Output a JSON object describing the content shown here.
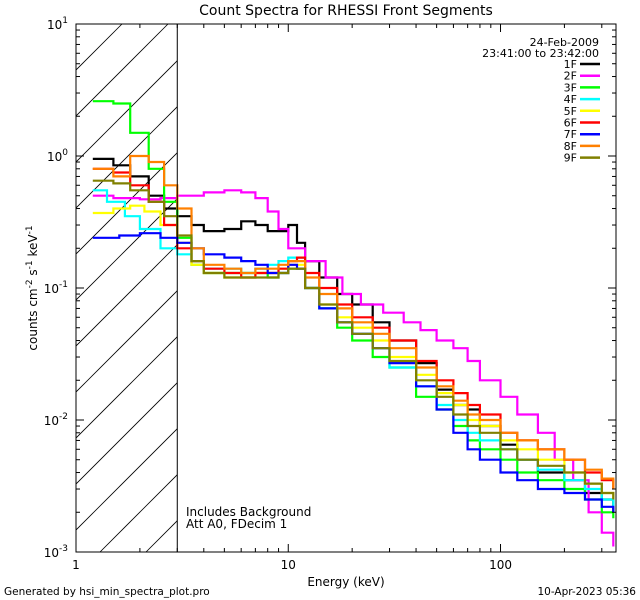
{
  "chart_data": {
    "type": "line",
    "title": "Count Spectra for RHESSI Front Segments",
    "xlabel": "Energy (keV)",
    "ylabel_parts": [
      "counts cm",
      "-2",
      " s",
      "-1",
      " keV",
      "-1"
    ],
    "x_scale": "log",
    "y_scale": "log",
    "xlim": [
      1,
      350
    ],
    "ylim": [
      0.001,
      10
    ],
    "x_ticks": [
      {
        "value": 1,
        "label": "1"
      },
      {
        "value": 10,
        "label": "10"
      },
      {
        "value": 100,
        "label": "100"
      }
    ],
    "y_ticks": [
      {
        "value": 0.001,
        "base": "10",
        "exp": "-3"
      },
      {
        "value": 0.01,
        "base": "10",
        "exp": "-2"
      },
      {
        "value": 0.1,
        "base": "10",
        "exp": "-1"
      },
      {
        "value": 1,
        "base": "10",
        "exp": "0"
      },
      {
        "value": 10,
        "base": "10",
        "exp": "1"
      }
    ],
    "hatched_region_kev": [
      1,
      3
    ],
    "date": "24-Feb-2009",
    "time_range": "23:41:00 to 23:42:00",
    "annotations": [
      "Includes Background",
      "Att A0, FDecim 1"
    ],
    "legend_position": "top-right",
    "series": [
      {
        "name": "1F",
        "color": "#000000",
        "points": [
          [
            1.2,
            0.95
          ],
          [
            1.5,
            0.85
          ],
          [
            1.8,
            0.7
          ],
          [
            2.2,
            0.5
          ],
          [
            2.6,
            0.4
          ],
          [
            3.0,
            0.35
          ],
          [
            3.5,
            0.3
          ],
          [
            4.0,
            0.27
          ],
          [
            5.0,
            0.28
          ],
          [
            6.0,
            0.32
          ],
          [
            7.0,
            0.3
          ],
          [
            8.0,
            0.27
          ],
          [
            9.0,
            0.27
          ],
          [
            10.0,
            0.3
          ],
          [
            11.0,
            0.22
          ],
          [
            12.0,
            0.16
          ],
          [
            14.0,
            0.12
          ],
          [
            17.0,
            0.09
          ],
          [
            20.0,
            0.075
          ],
          [
            25.0,
            0.055
          ],
          [
            30.0,
            0.04
          ],
          [
            40.0,
            0.027
          ],
          [
            50.0,
            0.017
          ],
          [
            60.0,
            0.013
          ],
          [
            70.0,
            0.012
          ],
          [
            80.0,
            0.009
          ],
          [
            100.0,
            0.0065
          ],
          [
            120.0,
            0.005
          ],
          [
            150.0,
            0.004
          ],
          [
            200.0,
            0.0035
          ],
          [
            250.0,
            0.0028
          ],
          [
            300.0,
            0.0025
          ],
          [
            340.0,
            0.002
          ]
        ]
      },
      {
        "name": "2F",
        "color": "#ff00ff",
        "points": [
          [
            1.2,
            0.5
          ],
          [
            1.5,
            0.48
          ],
          [
            2.0,
            0.47
          ],
          [
            2.5,
            0.48
          ],
          [
            3.0,
            0.5
          ],
          [
            4.0,
            0.53
          ],
          [
            5.0,
            0.55
          ],
          [
            6.0,
            0.53
          ],
          [
            7.0,
            0.48
          ],
          [
            8.0,
            0.38
          ],
          [
            9.0,
            0.28
          ],
          [
            10.0,
            0.2
          ],
          [
            12.0,
            0.16
          ],
          [
            15.0,
            0.12
          ],
          [
            18.0,
            0.09
          ],
          [
            22.0,
            0.075
          ],
          [
            28.0,
            0.065
          ],
          [
            35.0,
            0.055
          ],
          [
            42.0,
            0.048
          ],
          [
            50.0,
            0.04
          ],
          [
            60.0,
            0.035
          ],
          [
            70.0,
            0.028
          ],
          [
            80.0,
            0.02
          ],
          [
            100.0,
            0.015
          ],
          [
            120.0,
            0.011
          ],
          [
            150.0,
            0.008
          ],
          [
            180.0,
            0.005
          ],
          [
            220.0,
            0.0035
          ],
          [
            260.0,
            0.002
          ],
          [
            300.0,
            0.0014
          ],
          [
            340.0,
            0.0011
          ]
        ]
      },
      {
        "name": "3F",
        "color": "#00ff00",
        "points": [
          [
            1.2,
            2.6
          ],
          [
            1.5,
            2.5
          ],
          [
            1.8,
            1.5
          ],
          [
            2.2,
            0.8
          ],
          [
            2.6,
            0.45
          ],
          [
            3.0,
            0.24
          ],
          [
            3.5,
            0.15
          ],
          [
            4.0,
            0.13
          ],
          [
            5.0,
            0.13
          ],
          [
            6.0,
            0.13
          ],
          [
            7.0,
            0.13
          ],
          [
            8.0,
            0.12
          ],
          [
            9.0,
            0.13
          ],
          [
            10.0,
            0.14
          ],
          [
            12.0,
            0.1
          ],
          [
            14.0,
            0.07
          ],
          [
            17.0,
            0.05
          ],
          [
            20.0,
            0.04
          ],
          [
            25.0,
            0.03
          ],
          [
            30.0,
            0.025
          ],
          [
            40.0,
            0.015
          ],
          [
            50.0,
            0.012
          ],
          [
            60.0,
            0.009
          ],
          [
            70.0,
            0.007
          ],
          [
            80.0,
            0.006
          ],
          [
            100.0,
            0.005
          ],
          [
            120.0,
            0.004
          ],
          [
            150.0,
            0.0035
          ],
          [
            200.0,
            0.003
          ],
          [
            250.0,
            0.0025
          ],
          [
            300.0,
            0.002
          ],
          [
            340.0,
            0.0018
          ]
        ]
      },
      {
        "name": "4F",
        "color": "#00ffff",
        "points": [
          [
            1.2,
            0.55
          ],
          [
            1.4,
            0.45
          ],
          [
            1.7,
            0.35
          ],
          [
            2.0,
            0.28
          ],
          [
            2.5,
            0.2
          ],
          [
            3.0,
            0.18
          ],
          [
            3.5,
            0.16
          ],
          [
            4.0,
            0.14
          ],
          [
            5.0,
            0.14
          ],
          [
            6.0,
            0.13
          ],
          [
            7.0,
            0.14
          ],
          [
            8.0,
            0.15
          ],
          [
            9.0,
            0.16
          ],
          [
            10.0,
            0.17
          ],
          [
            12.0,
            0.1
          ],
          [
            14.0,
            0.07
          ],
          [
            17.0,
            0.055
          ],
          [
            20.0,
            0.045
          ],
          [
            25.0,
            0.035
          ],
          [
            30.0,
            0.025
          ],
          [
            40.0,
            0.018
          ],
          [
            50.0,
            0.013
          ],
          [
            60.0,
            0.01
          ],
          [
            70.0,
            0.008
          ],
          [
            80.0,
            0.007
          ],
          [
            100.0,
            0.006
          ],
          [
            120.0,
            0.005
          ],
          [
            150.0,
            0.0042
          ],
          [
            200.0,
            0.0035
          ],
          [
            250.0,
            0.003
          ],
          [
            300.0,
            0.0025
          ],
          [
            340.0,
            0.0022
          ]
        ]
      },
      {
        "name": "5F",
        "color": "#ffff00",
        "points": [
          [
            1.2,
            0.37
          ],
          [
            1.5,
            0.4
          ],
          [
            1.8,
            0.42
          ],
          [
            2.1,
            0.38
          ],
          [
            2.5,
            0.3
          ],
          [
            3.0,
            0.22
          ],
          [
            3.5,
            0.15
          ],
          [
            4.0,
            0.13
          ],
          [
            5.0,
            0.12
          ],
          [
            6.0,
            0.12
          ],
          [
            7.0,
            0.13
          ],
          [
            8.0,
            0.13
          ],
          [
            9.0,
            0.14
          ],
          [
            10.0,
            0.15
          ],
          [
            12.0,
            0.1
          ],
          [
            14.0,
            0.075
          ],
          [
            17.0,
            0.06
          ],
          [
            20.0,
            0.05
          ],
          [
            25.0,
            0.04
          ],
          [
            30.0,
            0.03
          ],
          [
            40.0,
            0.022
          ],
          [
            50.0,
            0.016
          ],
          [
            60.0,
            0.013
          ],
          [
            70.0,
            0.01
          ],
          [
            80.0,
            0.009
          ],
          [
            100.0,
            0.007
          ],
          [
            120.0,
            0.006
          ],
          [
            150.0,
            0.005
          ],
          [
            200.0,
            0.004
          ],
          [
            250.0,
            0.0033
          ],
          [
            300.0,
            0.0028
          ],
          [
            340.0,
            0.0025
          ]
        ]
      },
      {
        "name": "6F",
        "color": "#ff0000",
        "points": [
          [
            1.2,
            0.8
          ],
          [
            1.5,
            0.75
          ],
          [
            1.8,
            0.6
          ],
          [
            2.2,
            0.45
          ],
          [
            2.6,
            0.3
          ],
          [
            3.0,
            0.2
          ],
          [
            3.5,
            0.16
          ],
          [
            4.0,
            0.14
          ],
          [
            5.0,
            0.13
          ],
          [
            6.0,
            0.12
          ],
          [
            7.0,
            0.13
          ],
          [
            8.0,
            0.13
          ],
          [
            9.0,
            0.14
          ],
          [
            10.0,
            0.16
          ],
          [
            11.0,
            0.17
          ],
          [
            12.0,
            0.13
          ],
          [
            14.0,
            0.1
          ],
          [
            17.0,
            0.075
          ],
          [
            20.0,
            0.06
          ],
          [
            25.0,
            0.05
          ],
          [
            30.0,
            0.04
          ],
          [
            40.0,
            0.028
          ],
          [
            50.0,
            0.02
          ],
          [
            60.0,
            0.016
          ],
          [
            70.0,
            0.013
          ],
          [
            80.0,
            0.011
          ],
          [
            100.0,
            0.008
          ],
          [
            120.0,
            0.007
          ],
          [
            150.0,
            0.006
          ],
          [
            200.0,
            0.005
          ],
          [
            250.0,
            0.004
          ],
          [
            300.0,
            0.0035
          ],
          [
            340.0,
            0.003
          ]
        ]
      },
      {
        "name": "7F",
        "color": "#0000ff",
        "points": [
          [
            1.2,
            0.24
          ],
          [
            1.6,
            0.25
          ],
          [
            2.0,
            0.26
          ],
          [
            2.5,
            0.24
          ],
          [
            3.0,
            0.22
          ],
          [
            3.5,
            0.2
          ],
          [
            4.0,
            0.18
          ],
          [
            5.0,
            0.17
          ],
          [
            6.0,
            0.16
          ],
          [
            7.0,
            0.15
          ],
          [
            8.0,
            0.13
          ],
          [
            9.0,
            0.13
          ],
          [
            10.0,
            0.15
          ],
          [
            11.0,
            0.14
          ],
          [
            12.0,
            0.1
          ],
          [
            14.0,
            0.07
          ],
          [
            17.0,
            0.055
          ],
          [
            20.0,
            0.045
          ],
          [
            25.0,
            0.035
          ],
          [
            30.0,
            0.027
          ],
          [
            40.0,
            0.018
          ],
          [
            50.0,
            0.012
          ],
          [
            60.0,
            0.008
          ],
          [
            70.0,
            0.006
          ],
          [
            80.0,
            0.005
          ],
          [
            100.0,
            0.004
          ],
          [
            120.0,
            0.0035
          ],
          [
            150.0,
            0.003
          ],
          [
            200.0,
            0.0028
          ],
          [
            250.0,
            0.0025
          ],
          [
            300.0,
            0.0022
          ],
          [
            340.0,
            0.002
          ]
        ]
      },
      {
        "name": "8F",
        "color": "#ff8000",
        "points": [
          [
            1.2,
            0.8
          ],
          [
            1.5,
            0.7
          ],
          [
            1.8,
            1.0
          ],
          [
            2.2,
            0.9
          ],
          [
            2.6,
            0.6
          ],
          [
            3.0,
            0.4
          ],
          [
            3.5,
            0.2
          ],
          [
            4.0,
            0.15
          ],
          [
            5.0,
            0.14
          ],
          [
            6.0,
            0.13
          ],
          [
            7.0,
            0.14
          ],
          [
            8.0,
            0.14
          ],
          [
            9.0,
            0.15
          ],
          [
            10.0,
            0.16
          ],
          [
            12.0,
            0.12
          ],
          [
            14.0,
            0.09
          ],
          [
            17.0,
            0.07
          ],
          [
            20.0,
            0.055
          ],
          [
            25.0,
            0.045
          ],
          [
            30.0,
            0.035
          ],
          [
            40.0,
            0.025
          ],
          [
            50.0,
            0.018
          ],
          [
            60.0,
            0.014
          ],
          [
            70.0,
            0.011
          ],
          [
            80.0,
            0.01
          ],
          [
            100.0,
            0.008
          ],
          [
            120.0,
            0.007
          ],
          [
            150.0,
            0.006
          ],
          [
            200.0,
            0.005
          ],
          [
            250.0,
            0.0042
          ],
          [
            300.0,
            0.0036
          ],
          [
            340.0,
            0.003
          ]
        ]
      },
      {
        "name": "9F",
        "color": "#808000",
        "points": [
          [
            1.2,
            0.65
          ],
          [
            1.5,
            0.62
          ],
          [
            1.8,
            0.55
          ],
          [
            2.2,
            0.45
          ],
          [
            2.6,
            0.35
          ],
          [
            3.0,
            0.25
          ],
          [
            3.5,
            0.16
          ],
          [
            4.0,
            0.13
          ],
          [
            5.0,
            0.12
          ],
          [
            6.0,
            0.12
          ],
          [
            7.0,
            0.12
          ],
          [
            8.0,
            0.12
          ],
          [
            9.0,
            0.13
          ],
          [
            10.0,
            0.14
          ],
          [
            12.0,
            0.1
          ],
          [
            14.0,
            0.075
          ],
          [
            17.0,
            0.055
          ],
          [
            20.0,
            0.045
          ],
          [
            25.0,
            0.035
          ],
          [
            30.0,
            0.028
          ],
          [
            40.0,
            0.02
          ],
          [
            50.0,
            0.015
          ],
          [
            60.0,
            0.011
          ],
          [
            70.0,
            0.009
          ],
          [
            80.0,
            0.008
          ],
          [
            100.0,
            0.006
          ],
          [
            120.0,
            0.005
          ],
          [
            150.0,
            0.0045
          ],
          [
            200.0,
            0.004
          ],
          [
            250.0,
            0.0033
          ],
          [
            300.0,
            0.0028
          ],
          [
            340.0,
            0.0025
          ]
        ]
      }
    ]
  },
  "footer": {
    "generated_by": "Generated by hsi_min_spectra_plot.pro",
    "timestamp": "10-Apr-2023 05:36"
  }
}
